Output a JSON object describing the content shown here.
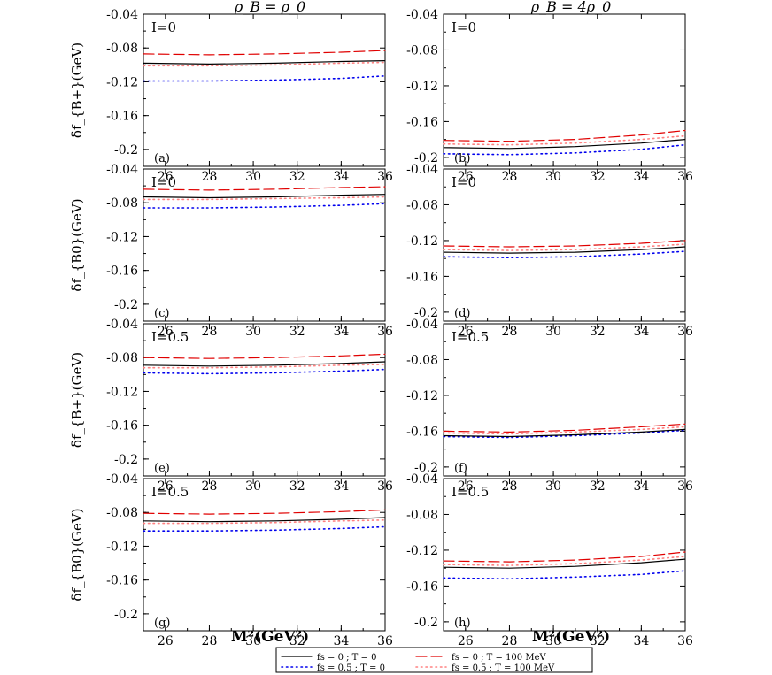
{
  "column_titles": [
    "ρ_B = ρ_0",
    "ρ_B = 4ρ_0"
  ],
  "row_ylabels": [
    "δf_{B+}(GeV)",
    "δf_{B0}(GeV)",
    "δf_{B+}(GeV)",
    "δf_{B0}(GeV)"
  ],
  "xlabel": "M²(GeV²)",
  "legend": [
    {
      "label": "fs = 0 ; T = 0",
      "color": "#000000",
      "dash": "solid"
    },
    {
      "label": "fs = 0 ; T = 100 MeV",
      "color": "#e00000",
      "dash": "long"
    },
    {
      "label": "fs = 0.5 ; T = 0",
      "color": "#0000ee",
      "dash": "dot"
    },
    {
      "label": "fs = 0.5 ; T = 100 MeV",
      "color": "#ff8080",
      "dash": "dot"
    }
  ],
  "chart_data": [
    {
      "type": "line",
      "panel": "(a)",
      "annotation": "I=0",
      "ylim": [
        -0.22,
        -0.04
      ],
      "xlim": [
        25,
        36
      ],
      "x": [
        25,
        28,
        31,
        34,
        36
      ],
      "series": [
        {
          "name": "fs = 0 ; T = 0",
          "values": [
            -0.098,
            -0.099,
            -0.098,
            -0.096,
            -0.095
          ]
        },
        {
          "name": "fs = 0 ; T = 100 MeV",
          "values": [
            -0.087,
            -0.088,
            -0.087,
            -0.085,
            -0.083
          ]
        },
        {
          "name": "fs = 0.5 ; T = 0",
          "values": [
            -0.119,
            -0.119,
            -0.118,
            -0.116,
            -0.113
          ]
        },
        {
          "name": "fs = 0.5 ; T = 100 MeV",
          "values": [
            -0.101,
            -0.101,
            -0.1,
            -0.098,
            -0.097
          ]
        }
      ]
    },
    {
      "type": "line",
      "panel": "(b)",
      "annotation": "I=0",
      "ylim": [
        -0.21,
        -0.04
      ],
      "xlim": [
        25,
        36
      ],
      "x": [
        25,
        28,
        31,
        34,
        36
      ],
      "series": [
        {
          "name": "fs = 0 ; T = 0",
          "values": [
            -0.189,
            -0.19,
            -0.188,
            -0.184,
            -0.18
          ]
        },
        {
          "name": "fs = 0 ; T = 100 MeV",
          "values": [
            -0.181,
            -0.182,
            -0.18,
            -0.175,
            -0.17
          ]
        },
        {
          "name": "fs = 0.5 ; T = 0",
          "values": [
            -0.196,
            -0.197,
            -0.195,
            -0.191,
            -0.186
          ]
        },
        {
          "name": "fs = 0.5 ; T = 100 MeV",
          "values": [
            -0.185,
            -0.186,
            -0.184,
            -0.18,
            -0.176
          ]
        }
      ]
    },
    {
      "type": "line",
      "panel": "(c)",
      "annotation": "I=0",
      "ylim": [
        -0.22,
        -0.04
      ],
      "xlim": [
        25,
        36
      ],
      "x": [
        25,
        28,
        31,
        34,
        36
      ],
      "series": [
        {
          "name": "fs = 0 ; T = 0",
          "values": [
            -0.073,
            -0.074,
            -0.073,
            -0.071,
            -0.07
          ]
        },
        {
          "name": "fs = 0 ; T = 100 MeV",
          "values": [
            -0.064,
            -0.065,
            -0.064,
            -0.062,
            -0.061
          ]
        },
        {
          "name": "fs = 0.5 ; T = 0",
          "values": [
            -0.086,
            -0.086,
            -0.085,
            -0.083,
            -0.081
          ]
        },
        {
          "name": "fs = 0.5 ; T = 100 MeV",
          "values": [
            -0.076,
            -0.076,
            -0.075,
            -0.074,
            -0.073
          ]
        }
      ]
    },
    {
      "type": "line",
      "panel": "(d)",
      "annotation": "I=0",
      "ylim": [
        -0.21,
        -0.04
      ],
      "xlim": [
        25,
        36
      ],
      "x": [
        25,
        28,
        31,
        34,
        36
      ],
      "series": [
        {
          "name": "fs = 0 ; T = 0",
          "values": [
            -0.133,
            -0.134,
            -0.133,
            -0.13,
            -0.127
          ]
        },
        {
          "name": "fs = 0 ; T = 100 MeV",
          "values": [
            -0.126,
            -0.127,
            -0.126,
            -0.123,
            -0.12
          ]
        },
        {
          "name": "fs = 0.5 ; T = 0",
          "values": [
            -0.138,
            -0.139,
            -0.138,
            -0.135,
            -0.132
          ]
        },
        {
          "name": "fs = 0.5 ; T = 100 MeV",
          "values": [
            -0.13,
            -0.131,
            -0.13,
            -0.127,
            -0.124
          ]
        }
      ]
    },
    {
      "type": "line",
      "panel": "(e)",
      "annotation": "I=0.5",
      "ylim": [
        -0.22,
        -0.04
      ],
      "xlim": [
        25,
        36
      ],
      "x": [
        25,
        28,
        31,
        34,
        36
      ],
      "series": [
        {
          "name": "fs = 0 ; T = 0",
          "values": [
            -0.089,
            -0.09,
            -0.089,
            -0.087,
            -0.085
          ]
        },
        {
          "name": "fs = 0 ; T = 100 MeV",
          "values": [
            -0.08,
            -0.081,
            -0.08,
            -0.078,
            -0.076
          ]
        },
        {
          "name": "fs = 0.5 ; T = 0",
          "values": [
            -0.098,
            -0.099,
            -0.098,
            -0.096,
            -0.094
          ]
        },
        {
          "name": "fs = 0.5 ; T = 100 MeV",
          "values": [
            -0.092,
            -0.092,
            -0.091,
            -0.089,
            -0.088
          ]
        }
      ]
    },
    {
      "type": "line",
      "panel": "(f)",
      "annotation": "I=0.5",
      "ylim": [
        -0.21,
        -0.04
      ],
      "xlim": [
        25,
        36
      ],
      "x": [
        25,
        28,
        31,
        34,
        36
      ],
      "series": [
        {
          "name": "fs = 0 ; T = 0",
          "values": [
            -0.165,
            -0.166,
            -0.164,
            -0.161,
            -0.158
          ]
        },
        {
          "name": "fs = 0 ; T = 100 MeV",
          "values": [
            -0.16,
            -0.161,
            -0.159,
            -0.155,
            -0.152
          ]
        },
        {
          "name": "fs = 0.5 ; T = 0",
          "values": [
            -0.166,
            -0.167,
            -0.165,
            -0.162,
            -0.159
          ]
        },
        {
          "name": "fs = 0.5 ; T = 100 MeV",
          "values": [
            -0.162,
            -0.163,
            -0.161,
            -0.158,
            -0.155
          ]
        }
      ]
    },
    {
      "type": "line",
      "panel": "(g)",
      "annotation": "I=0.5",
      "ylim": [
        -0.22,
        -0.04
      ],
      "xlim": [
        25,
        36
      ],
      "x": [
        25,
        28,
        31,
        34,
        36
      ],
      "series": [
        {
          "name": "fs = 0 ; T = 0",
          "values": [
            -0.09,
            -0.091,
            -0.09,
            -0.088,
            -0.086
          ]
        },
        {
          "name": "fs = 0 ; T = 100 MeV",
          "values": [
            -0.081,
            -0.082,
            -0.081,
            -0.079,
            -0.077
          ]
        },
        {
          "name": "fs = 0.5 ; T = 0",
          "values": [
            -0.102,
            -0.102,
            -0.101,
            -0.099,
            -0.097
          ]
        },
        {
          "name": "fs = 0.5 ; T = 100 MeV",
          "values": [
            -0.093,
            -0.093,
            -0.092,
            -0.09,
            -0.089
          ]
        }
      ]
    },
    {
      "type": "line",
      "panel": "(h)",
      "annotation": "I=0.5",
      "ylim": [
        -0.21,
        -0.04
      ],
      "xlim": [
        25,
        36
      ],
      "x": [
        25,
        28,
        31,
        34,
        36
      ],
      "series": [
        {
          "name": "fs = 0 ; T = 0",
          "values": [
            -0.139,
            -0.14,
            -0.138,
            -0.134,
            -0.13
          ]
        },
        {
          "name": "fs = 0 ; T = 100 MeV",
          "values": [
            -0.132,
            -0.133,
            -0.131,
            -0.127,
            -0.122
          ]
        },
        {
          "name": "fs = 0.5 ; T = 0",
          "values": [
            -0.151,
            -0.152,
            -0.15,
            -0.147,
            -0.143
          ]
        },
        {
          "name": "fs = 0.5 ; T = 100 MeV",
          "values": [
            -0.136,
            -0.137,
            -0.135,
            -0.131,
            -0.127
          ]
        }
      ]
    }
  ],
  "yticks": [
    -0.04,
    -0.08,
    -0.12,
    -0.16,
    -0.2
  ],
  "xticks": [
    26,
    28,
    30,
    32,
    34,
    36
  ]
}
